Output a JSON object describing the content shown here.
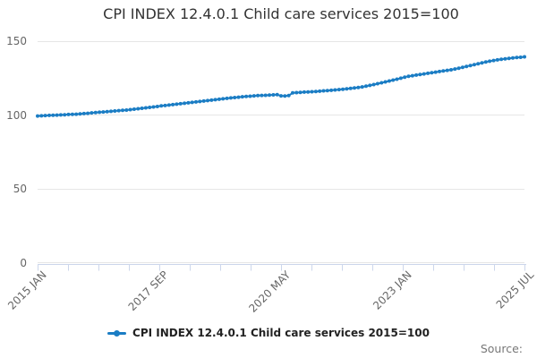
{
  "title": "CPI INDEX 12.4.0.1 Child care services 2015=100",
  "source_label": "Source:",
  "legend": {
    "label": "CPI INDEX 12.4.0.1 Child care services 2015=100"
  },
  "colors": {
    "line": "#1b7dc4",
    "grid": "#e6e6e6",
    "axis": "#ccd6eb",
    "tick_label": "#666666",
    "title_text": "#333333",
    "legend_text": "#222222",
    "source_text": "#777777"
  },
  "chart_data": {
    "type": "line",
    "title": "CPI INDEX 12.4.0.1 Child care services 2015=100",
    "series_name": "CPI INDEX 12.4.0.1 Child care services 2015=100",
    "frequency": "monthly",
    "x_start": "2015 JAN",
    "x_end": "2025 JUL",
    "x_tick_labels": [
      "2015 JAN",
      "2017 SEP",
      "2020 MAY",
      "2023 JAN",
      "2025 JUL"
    ],
    "y_tick_labels": [
      "150",
      "100",
      "50",
      "0"
    ],
    "y_tick_values": [
      150,
      100,
      50,
      0
    ],
    "ylim": [
      0,
      150
    ],
    "grid": "horizontal",
    "legend_position": "bottom",
    "marker": "circle",
    "values": [
      99.3,
      99.4,
      99.6,
      99.7,
      99.8,
      99.9,
      100.0,
      100.1,
      100.3,
      100.4,
      100.5,
      100.7,
      100.9,
      101.1,
      101.4,
      101.6,
      101.8,
      102.0,
      102.2,
      102.4,
      102.7,
      102.9,
      103.1,
      103.3,
      103.6,
      103.9,
      104.2,
      104.5,
      104.8,
      105.1,
      105.4,
      105.7,
      106.1,
      106.4,
      106.7,
      107.0,
      107.3,
      107.6,
      107.9,
      108.2,
      108.5,
      108.8,
      109.1,
      109.4,
      109.7,
      110.0,
      110.3,
      110.6,
      110.9,
      111.2,
      111.5,
      111.8,
      112.0,
      112.3,
      112.5,
      112.7,
      112.9,
      113.1,
      113.2,
      113.3,
      113.4,
      113.6,
      113.7,
      112.9,
      112.8,
      113.1,
      114.9,
      115.1,
      115.3,
      115.5,
      115.6,
      115.7,
      115.9,
      116.1,
      116.3,
      116.5,
      116.7,
      116.9,
      117.2,
      117.4,
      117.7,
      118.0,
      118.3,
      118.6,
      119.0,
      119.5,
      120.0,
      120.6,
      121.2,
      121.8,
      122.4,
      123.0,
      123.6,
      124.2,
      124.9,
      125.6,
      126.2,
      126.6,
      127.0,
      127.4,
      127.8,
      128.2,
      128.6,
      129.0,
      129.4,
      129.8,
      130.2,
      130.6,
      131.1,
      131.7,
      132.3,
      132.9,
      133.5,
      134.1,
      134.7,
      135.3,
      135.9,
      136.4,
      136.9,
      137.3,
      137.7,
      138.0,
      138.3,
      138.6,
      138.9,
      139.1,
      139.4
    ]
  }
}
